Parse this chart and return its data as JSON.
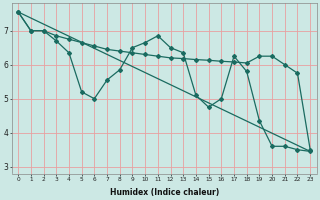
{
  "xlabel": "Humidex (Indice chaleur)",
  "ylabel": "",
  "bg_color": "#cce8e4",
  "grid_color": "#e8a0a0",
  "line_color": "#1a6b60",
  "xlim": [
    -0.5,
    23.5
  ],
  "ylim": [
    2.8,
    7.8
  ],
  "yticks": [
    3,
    4,
    5,
    6,
    7
  ],
  "xticks": [
    0,
    1,
    2,
    3,
    4,
    5,
    6,
    7,
    8,
    9,
    10,
    11,
    12,
    13,
    14,
    15,
    16,
    17,
    18,
    19,
    20,
    21,
    22,
    23
  ],
  "series1_x": [
    0,
    1,
    2,
    3,
    4,
    5,
    6,
    7,
    8,
    9,
    10,
    11,
    12,
    13,
    14,
    15,
    16,
    17,
    18,
    19,
    20,
    21,
    22,
    23
  ],
  "series1_y": [
    7.55,
    7.0,
    7.0,
    6.85,
    6.75,
    6.65,
    6.55,
    6.45,
    6.4,
    6.35,
    6.3,
    6.25,
    6.2,
    6.18,
    6.15,
    6.13,
    6.1,
    6.08,
    6.05,
    6.25,
    6.25,
    6.0,
    5.75,
    3.5
  ],
  "series2_x": [
    0,
    1,
    2,
    3,
    4,
    5,
    6,
    7,
    8,
    9,
    10,
    11,
    12,
    13,
    14,
    15,
    16,
    17,
    18,
    19,
    20,
    21,
    22,
    23
  ],
  "series2_y": [
    7.55,
    7.0,
    7.0,
    6.7,
    6.35,
    5.2,
    5.0,
    5.55,
    5.85,
    6.5,
    6.65,
    6.85,
    6.5,
    6.35,
    5.1,
    4.75,
    5.0,
    6.25,
    5.8,
    4.35,
    3.6,
    3.6,
    3.5,
    3.45
  ],
  "series3_x": [
    0,
    23
  ],
  "series3_y": [
    7.55,
    3.45
  ]
}
